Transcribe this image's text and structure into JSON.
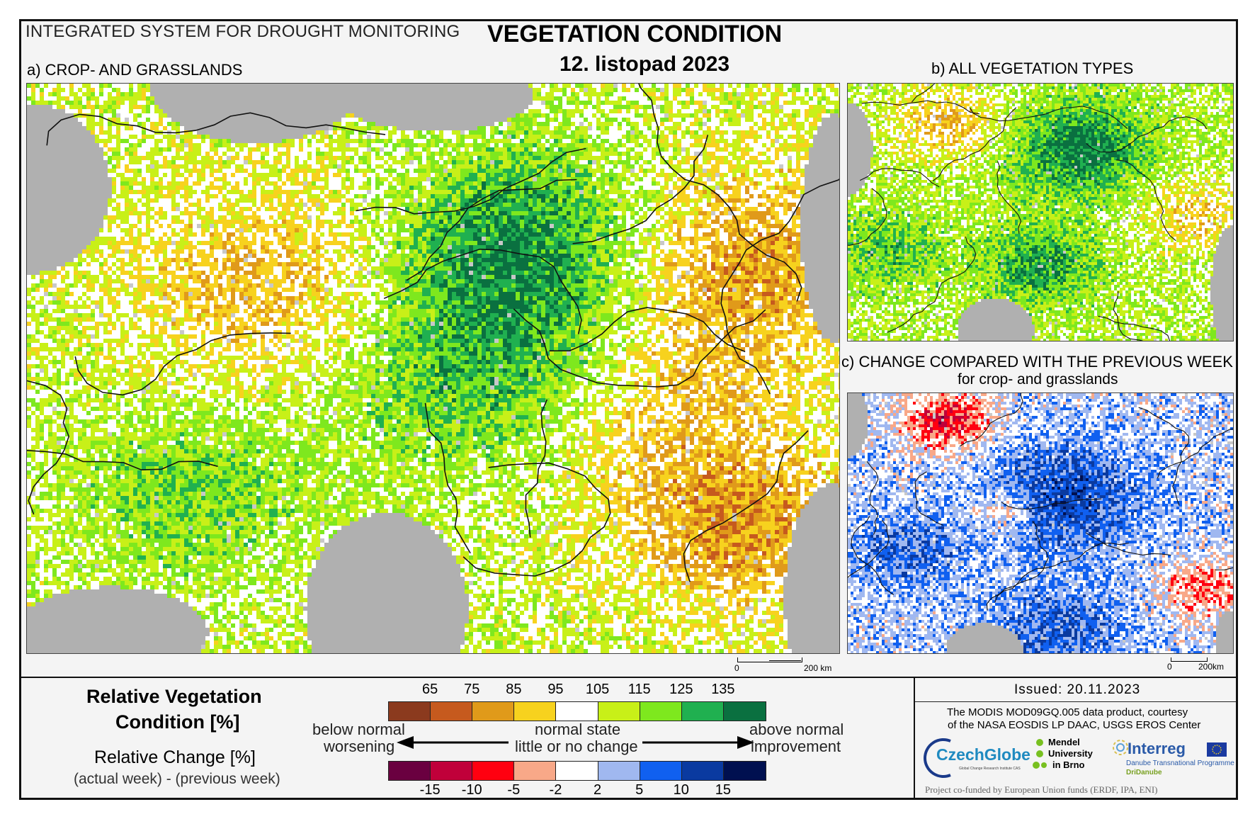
{
  "header": {
    "system": "INTEGRATED SYSTEM FOR DROUGHT MONITORING",
    "title": "VEGETATION CONDITION",
    "date": "12. listopad 2023"
  },
  "panels": {
    "a": {
      "label": "a) CROP- AND GRASSLANDS",
      "scale_zero": "0",
      "scale_end": "200 km"
    },
    "b": {
      "label": "b) ALL VEGETATION TYPES"
    },
    "c": {
      "label": "c) CHANGE COMPARED WITH THE PREVIOUS WEEK",
      "sublabel": "for crop- and grasslands",
      "scale_zero": "0",
      "scale_end": "200km"
    }
  },
  "legend": {
    "rvc_title_line1": "Relative Vegetation",
    "rvc_title_line2": "Condition [%]",
    "rc_title": "Relative Change [%]",
    "rc_subtitle": "(actual week) - (previous week)",
    "below_line1": "below normal",
    "below_line2": "worsening",
    "normal_line1": "normal state",
    "normal_line2": "little or no change",
    "above_line1": "above normal",
    "above_line2": "improvement",
    "condition_ticks": [
      "65",
      "75",
      "85",
      "95",
      "105",
      "115",
      "125",
      "135"
    ],
    "condition_colors": [
      "#8b3a1e",
      "#c65a1e",
      "#e09a1a",
      "#f7d21e",
      "#ffffff",
      "#c8f018",
      "#7ee81e",
      "#20b050",
      "#0a7040"
    ],
    "change_ticks": [
      "-15",
      "-10",
      "-5",
      "-2",
      "2",
      "5",
      "10",
      "15"
    ],
    "change_colors": [
      "#6a0040",
      "#c0003a",
      "#ff0010",
      "#f8a888",
      "#ffffff",
      "#a0b8f0",
      "#1060f0",
      "#0a3aa0",
      "#001050"
    ]
  },
  "credits": {
    "issued": "Issued: 20.11.2023",
    "modis_line1": "The MODIS MOD09GQ.005 data product, courtesy",
    "modis_line2": "of the NASA EOSDIS LP DAAC, USGS EROS Center",
    "czechglobe": "CzechGlobe",
    "czechglobe_sub": "Global Change Research Institute CAS",
    "mendel_line1": "Mendel",
    "mendel_line2": "University",
    "mendel_line3": "in Brno",
    "interreg": "Interreg",
    "interreg_sub1": "Danube Transnational Programme",
    "interreg_sub2": "DriDanube",
    "funding": "Project co-funded by European Union funds (ERDF, IPA, ENI)"
  }
}
